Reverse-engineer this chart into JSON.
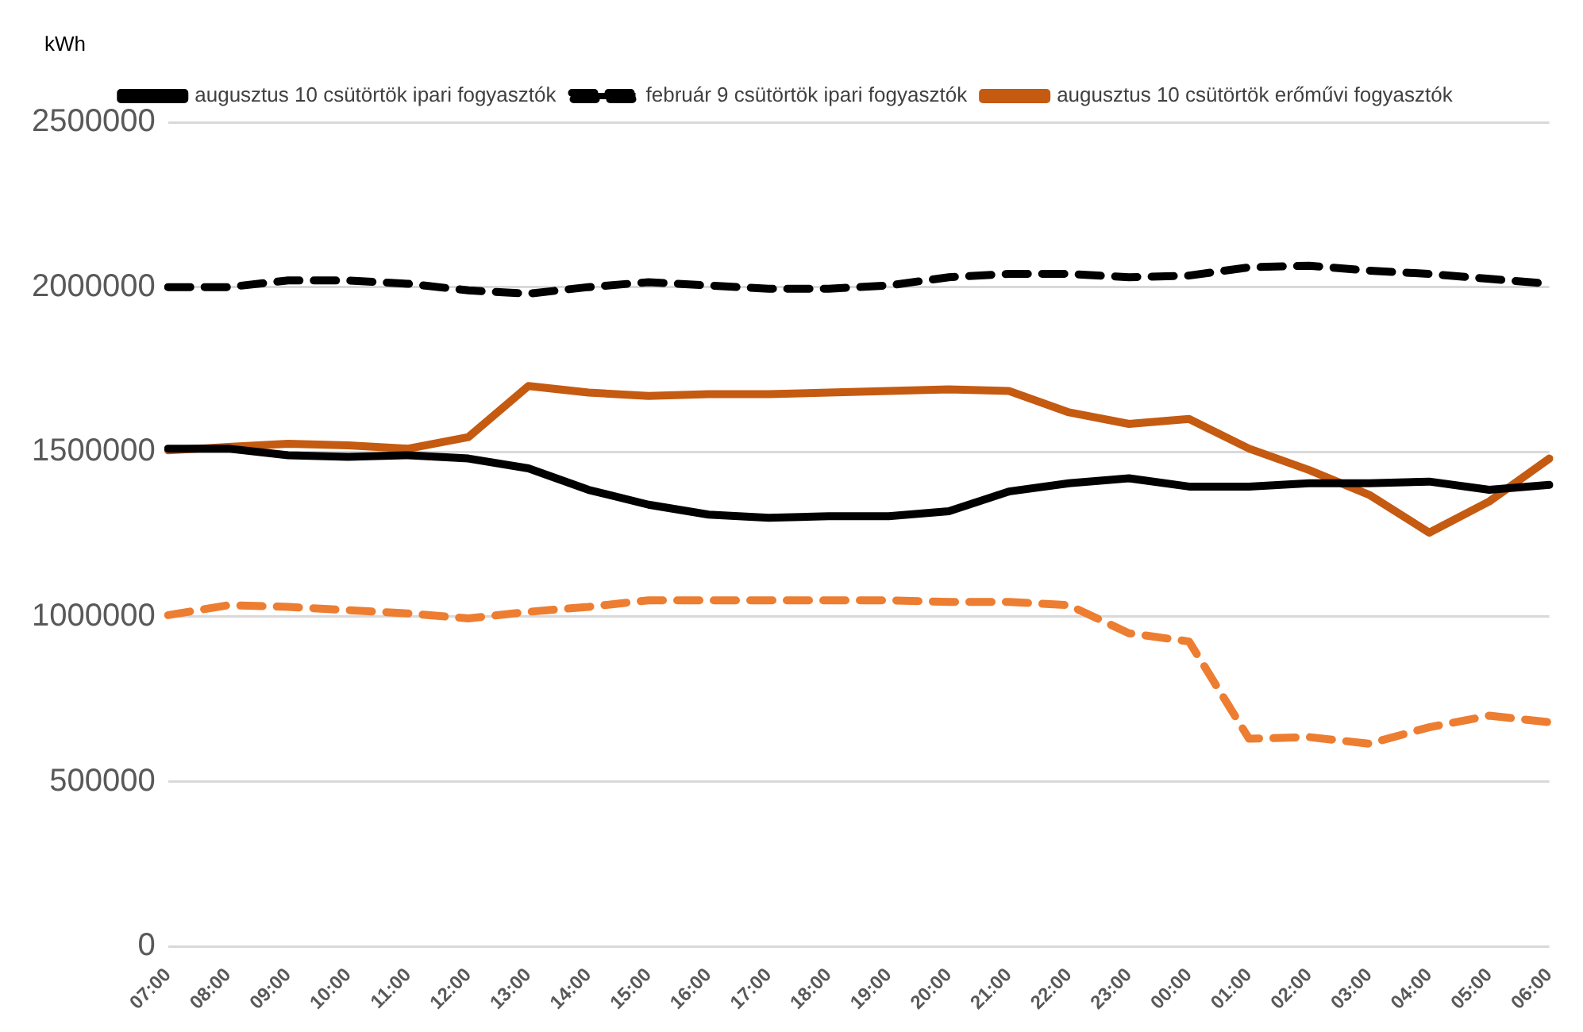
{
  "chart_data": {
    "type": "line",
    "ylabel": "kWh",
    "categories": [
      "07:00",
      "08:00",
      "09:00",
      "10:00",
      "11:00",
      "12:00",
      "13:00",
      "14:00",
      "15:00",
      "16:00",
      "17:00",
      "18:00",
      "19:00",
      "20:00",
      "21:00",
      "22:00",
      "23:00",
      "00:00",
      "01:00",
      "02:00",
      "03:00",
      "04:00",
      "05:00",
      "06:00"
    ],
    "series": [
      {
        "name": "augusztus 10 csütörtök ipari fogyasztók",
        "color": "#000000",
        "line_style": "solid",
        "values": [
          1510000,
          1510000,
          1490000,
          1485000,
          1490000,
          1480000,
          1450000,
          1385000,
          1340000,
          1310000,
          1300000,
          1305000,
          1305000,
          1320000,
          1380000,
          1405000,
          1420000,
          1395000,
          1395000,
          1405000,
          1405000,
          1410000,
          1385000,
          1400000
        ]
      },
      {
        "name": "február 9 csütörtök ipari fogyasztók",
        "color": "#000000",
        "line_style": "dashed",
        "values": [
          2000000,
          2000000,
          2020000,
          2020000,
          2010000,
          1990000,
          1980000,
          2000000,
          2015000,
          2005000,
          1995000,
          1995000,
          2005000,
          2030000,
          2040000,
          2040000,
          2030000,
          2035000,
          2060000,
          2065000,
          2050000,
          2040000,
          2025000,
          2010000
        ]
      },
      {
        "name": "augusztus 10 csütörtök erőművi fogyasztók",
        "color": "#c55a11",
        "line_style": "solid",
        "values": [
          1505000,
          1515000,
          1525000,
          1520000,
          1510000,
          1545000,
          1700000,
          1680000,
          1670000,
          1675000,
          1675000,
          1680000,
          1685000,
          1690000,
          1685000,
          1620000,
          1585000,
          1600000,
          1510000,
          1445000,
          1370000,
          1255000,
          1350000,
          1480000
        ]
      },
      {
        "color": "#ed7d31",
        "line_style": "dashed",
        "values": [
          1005000,
          1035000,
          1030000,
          1020000,
          1010000,
          995000,
          1015000,
          1030000,
          1050000,
          1050000,
          1050000,
          1050000,
          1050000,
          1045000,
          1045000,
          1035000,
          950000,
          925000,
          630000,
          635000,
          615000,
          665000,
          700000,
          680000
        ]
      }
    ],
    "ylim": [
      0,
      2500000
    ],
    "yticks": [
      0,
      500000,
      1000000,
      1500000,
      2000000,
      2500000
    ],
    "grid": "y",
    "legend": "top",
    "marker": "none"
  }
}
